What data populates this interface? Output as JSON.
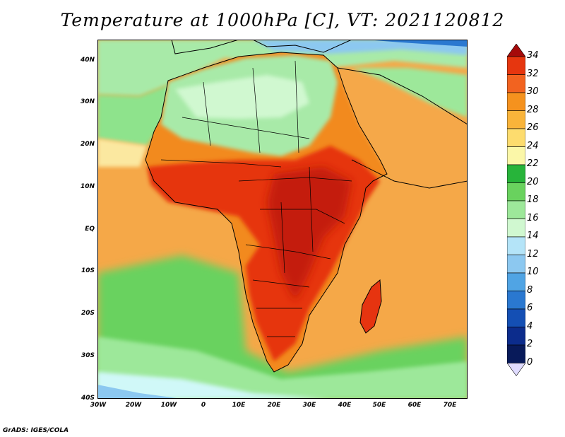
{
  "title": "Temperature at 1000hPa [C], VT: 2021120812",
  "credit": "GrADS: IGES/COLA",
  "map": {
    "lat_labels": [
      "40N",
      "30N",
      "20N",
      "10N",
      "EQ",
      "10S",
      "20S",
      "30S",
      "40S"
    ],
    "lon_labels": [
      "30W",
      "20W",
      "10W",
      "0",
      "10E",
      "20E",
      "30E",
      "40E",
      "50E",
      "60E",
      "70E"
    ],
    "lon_range": [
      -30,
      75
    ],
    "lat_range": [
      -40,
      45
    ],
    "colors": {
      "ocean_south": "#8ee38c",
      "ocean_far_south": "#d8f8f8",
      "ocean_tropical": "#f5a848",
      "sahara": "#a8eaa8",
      "hot_core": "#e63410",
      "hottest": "#c41a0a",
      "warm": "#f28a1e",
      "border": "#000000"
    }
  },
  "colorbar": {
    "labels": [
      "34",
      "32",
      "30",
      "28",
      "26",
      "24",
      "22",
      "20",
      "18",
      "16",
      "14",
      "12",
      "10",
      "8",
      "6",
      "4",
      "2",
      "0"
    ],
    "colors": [
      "#a50a0a",
      "#e6360f",
      "#f26320",
      "#f5921e",
      "#f9b43a",
      "#fddc6e",
      "#fbf7a8",
      "#27b43a",
      "#69d25e",
      "#9de89a",
      "#d0f8d0",
      "#b4e4f8",
      "#8cc8f0",
      "#50a4e4",
      "#2a78d0",
      "#144fb4",
      "#0c2c8c",
      "#081a5a"
    ]
  }
}
